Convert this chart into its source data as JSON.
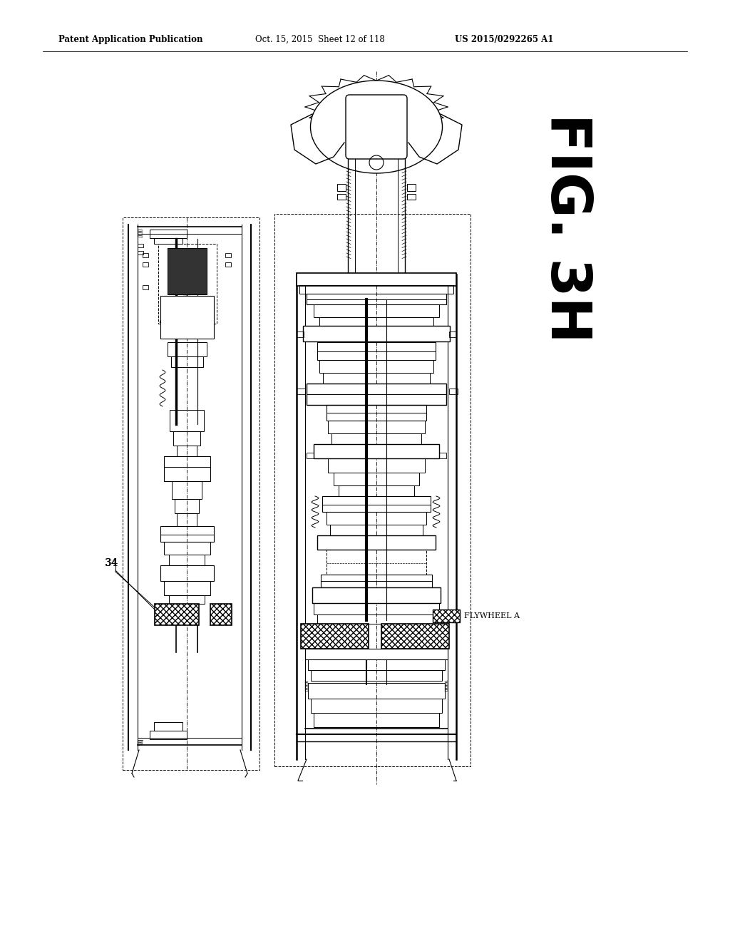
{
  "header_left": "Patent Application Publication",
  "header_center": "Oct. 15, 2015  Sheet 12 of 118",
  "header_right": "US 2015/0292265 A1",
  "fig_label": "FIG. 3H",
  "label_34": "34",
  "legend_label": "FLYWHEEL A",
  "bg_color": "#ffffff"
}
